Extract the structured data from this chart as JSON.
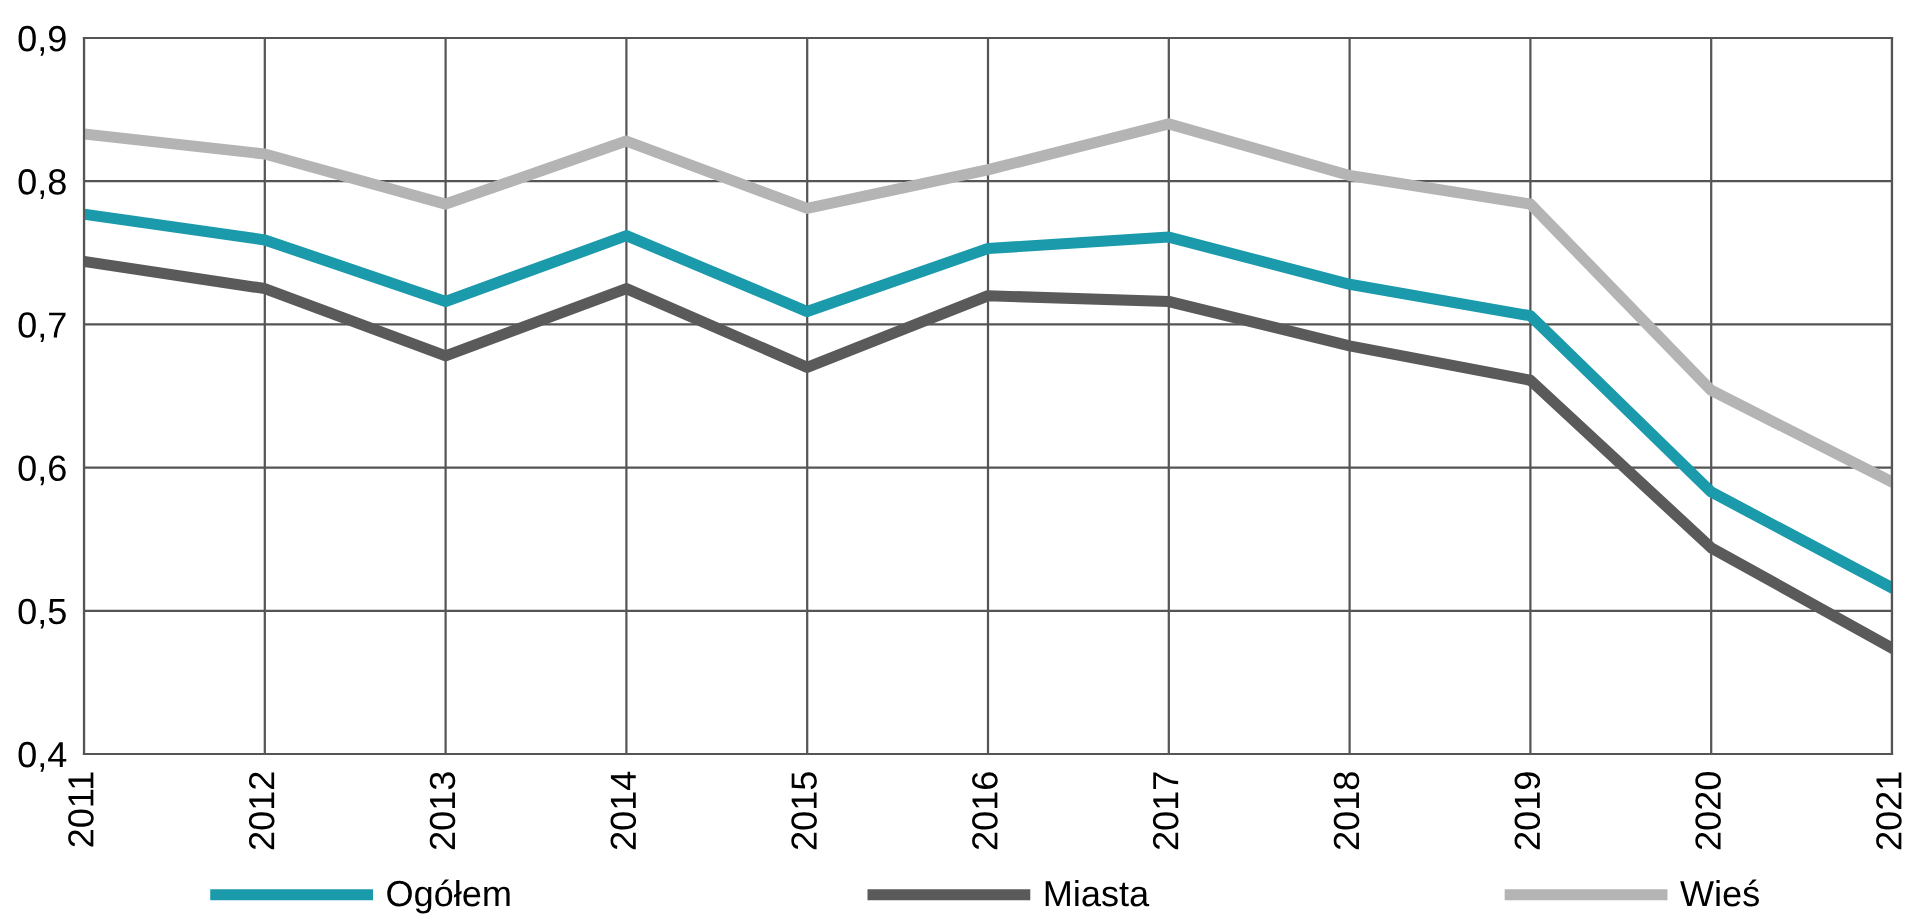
{
  "chart_data": {
    "type": "line",
    "categories": [
      "2011",
      "2012",
      "2013",
      "2014",
      "2015",
      "2016",
      "2017",
      "2018",
      "2019",
      "2020",
      "2021"
    ],
    "series": [
      {
        "name": "Ogółem",
        "color": "#1a9aaa",
        "values": [
          0.777,
          0.759,
          0.716,
          0.762,
          0.709,
          0.753,
          0.761,
          0.728,
          0.706,
          0.583,
          0.516
        ]
      },
      {
        "name": "Miasta",
        "color": "#5a5a5a",
        "values": [
          0.744,
          0.725,
          0.678,
          0.725,
          0.67,
          0.72,
          0.716,
          0.685,
          0.661,
          0.544,
          0.474
        ]
      },
      {
        "name": "Wieś",
        "color": "#b4b4b4",
        "values": [
          0.833,
          0.819,
          0.784,
          0.828,
          0.781,
          0.808,
          0.84,
          0.804,
          0.784,
          0.654,
          0.59
        ]
      }
    ],
    "ylim": [
      0.4,
      0.9
    ],
    "yticks": [
      {
        "value": 0.4,
        "label": "0,4"
      },
      {
        "value": 0.5,
        "label": "0,5"
      },
      {
        "value": 0.6,
        "label": "0,6"
      },
      {
        "value": 0.7,
        "label": "0,7"
      },
      {
        "value": 0.8,
        "label": "0,8"
      },
      {
        "value": 0.9,
        "label": "0,9"
      }
    ],
    "grid": true,
    "legend": "bottom",
    "marker": "none",
    "line_style": "solid"
  }
}
